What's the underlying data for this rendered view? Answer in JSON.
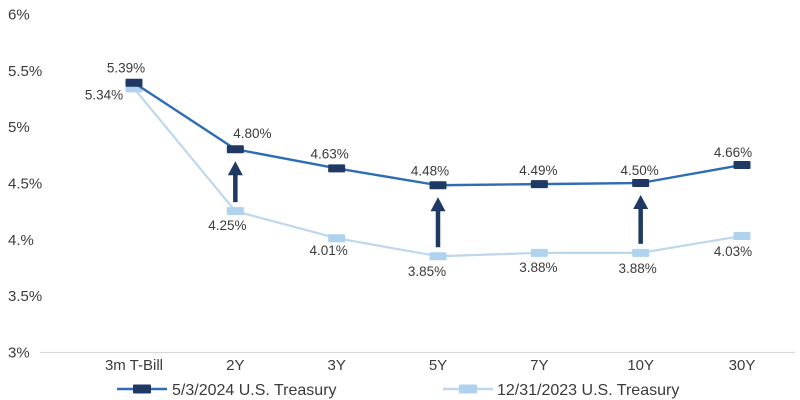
{
  "chart_data": {
    "type": "line",
    "title": "",
    "categories": [
      "3m T-Bill",
      "2Y",
      "3Y",
      "5Y",
      "7Y",
      "10Y",
      "30Y"
    ],
    "series": [
      {
        "name": "5/3/2024 U.S. Treasury",
        "values": [
          5.39,
          4.8,
          4.63,
          4.48,
          4.49,
          4.5,
          4.66
        ],
        "labels": [
          "5.39%",
          "4.80%",
          "4.63%",
          "4.48%",
          "4.49%",
          "4.50%",
          "4.66%"
        ],
        "line_color": "#2E6DB5",
        "marker_color": "#1F3864"
      },
      {
        "name": "12/31/2023 U.S. Treasury",
        "values": [
          5.34,
          4.25,
          4.01,
          3.85,
          3.88,
          3.88,
          4.03
        ],
        "labels": [
          "5.34%",
          "4.25%",
          "4.01%",
          "3.85%",
          "3.88%",
          "3.88%",
          "4.03%"
        ],
        "line_color": "#BDD7EE",
        "marker_color": "#AFD2EE"
      }
    ],
    "y_axis": {
      "min": 3,
      "max": 6,
      "ticks": [
        {
          "label": "6%",
          "value": 6
        },
        {
          "label": "5.5%",
          "value": 5.5
        },
        {
          "label": "5%",
          "value": 5
        },
        {
          "label": "4.5%",
          "value": 4.5
        },
        {
          "label": "4.%",
          "value": 4
        },
        {
          "label": "3.5%",
          "value": 3.5
        },
        {
          "label": "3%",
          "value": 3
        }
      ]
    },
    "annotations": {
      "up_arrows_at": [
        "2Y",
        "5Y",
        "10Y"
      ],
      "arrow_color": "#1F3864"
    },
    "legend": {
      "position": "bottom"
    },
    "grid": false,
    "axis_line_color": "#D9D9D9",
    "text_color": "#3B3B3B"
  }
}
